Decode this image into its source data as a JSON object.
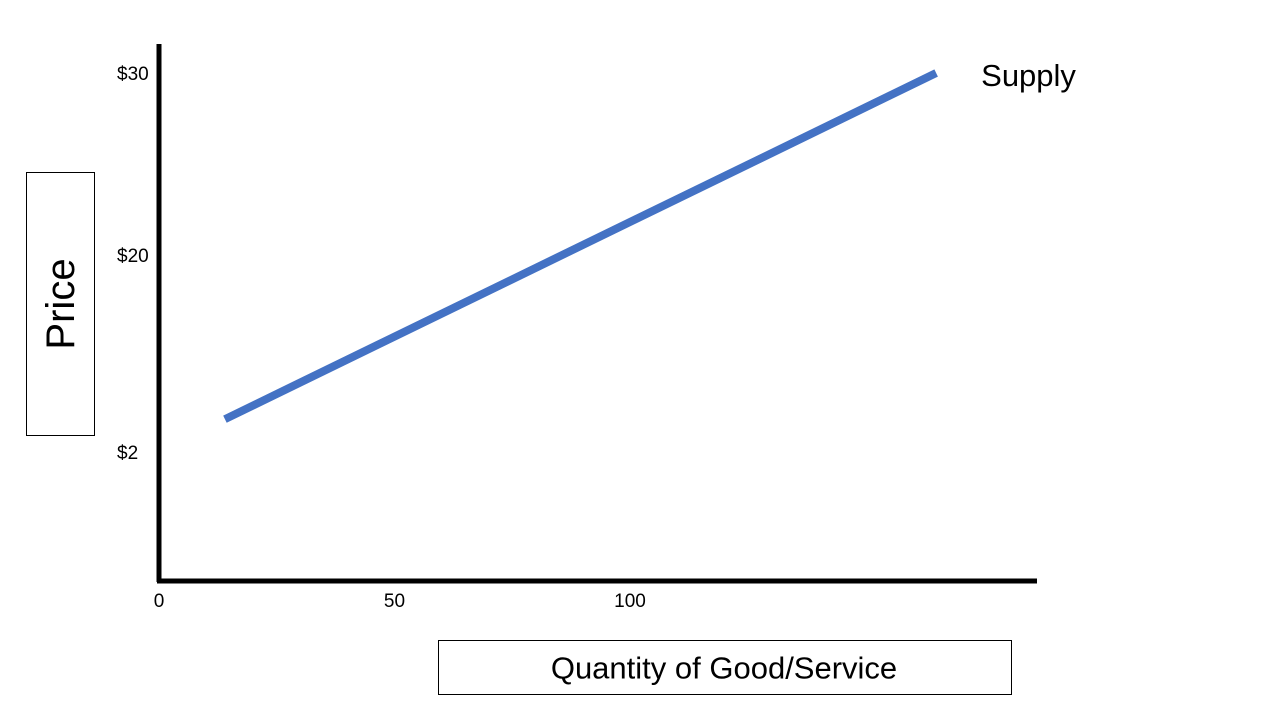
{
  "chart_data": {
    "type": "line",
    "title": "",
    "xlabel": "Quantity of Good/Service",
    "ylabel": "Price",
    "x_ticks": [
      {
        "value": 0,
        "label": "0"
      },
      {
        "value": 50,
        "label": "50"
      },
      {
        "value": 100,
        "label": "100"
      }
    ],
    "y_ticks": [
      {
        "value": 2,
        "label": "$2"
      },
      {
        "value": 20,
        "label": "$20"
      },
      {
        "value": 30,
        "label": "$30"
      }
    ],
    "series": [
      {
        "name": "Supply",
        "color": "#4472C4",
        "points": [
          {
            "x": 14,
            "y": 5
          },
          {
            "x": 165,
            "y": 30
          }
        ]
      }
    ],
    "grid": false,
    "legend": "none"
  }
}
